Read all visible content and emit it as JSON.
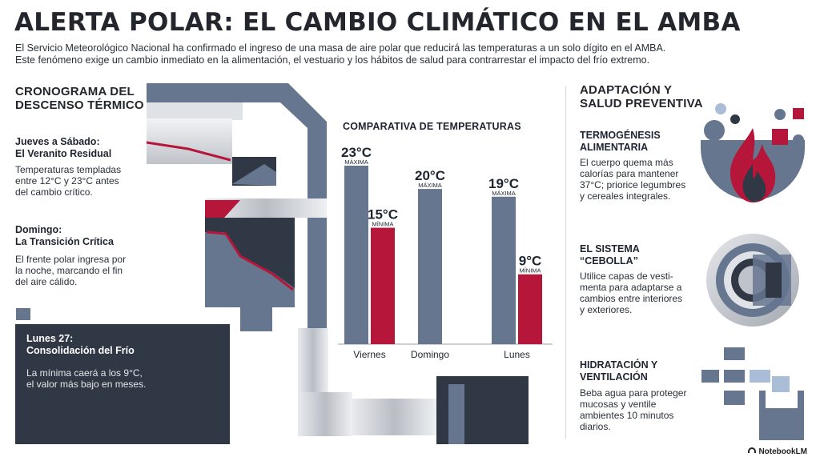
{
  "header": {
    "title": "ALERTA POLAR: EL CAMBIO CLIMÁTICO EN EL AMBA",
    "intro_line1": "El Servicio Meteorológico Nacional ha confirmado el ingreso de una masa de aire polar que reducirá las temperaturas a un solo dígito en el AMBA.",
    "intro_line2": "Este fenómeno exige un cambio inmediato en la alimentación, el vestuario y los hábitos de salud para contrarrestar el impacto del frío extremo."
  },
  "timeline": {
    "title_line1": "CRONOGRAMA DEL",
    "title_line2": "DESCENSO TÉRMICO",
    "items": [
      {
        "title_line1": "Jueves a Sábado:",
        "title_line2": "El Veranito Residual",
        "text_line1": "Temperaturas templadas",
        "text_line2": "entre 12°C y 23°C antes",
        "text_line3": "del cambio crítico."
      },
      {
        "title_line1": "Domingo:",
        "title_line2": "La Transición Crítica",
        "text_line1": "El frente polar ingresa por",
        "text_line2": "la noche, marcando el fin",
        "text_line3": "del aire cálido."
      },
      {
        "title_line1": "Lunes 27:",
        "title_line2": "Consolidación del Frío",
        "text_line1": "La mínima caerá a los 9°C,",
        "text_line2": "el valor más bajo en meses."
      }
    ]
  },
  "chart_data": {
    "type": "bar",
    "title": "COMPARATIVA DE TEMPERATURAS",
    "categories": [
      "Viernes",
      "Domingo",
      "Lunes"
    ],
    "series": [
      {
        "name": "MÁXIMA",
        "values": [
          23,
          20,
          19
        ],
        "labels": [
          "23°C",
          "20°C",
          "19°C"
        ],
        "color": "#66768f"
      },
      {
        "name": "MÍNIMA",
        "values": [
          15,
          null,
          9
        ],
        "labels": [
          "15°C",
          "",
          "9°C"
        ],
        "color": "#b5163a"
      }
    ],
    "ylim": [
      0,
      23
    ],
    "xlabel": "",
    "ylabel": ""
  },
  "adaptation": {
    "title_line1": "ADAPTACIÓN Y",
    "title_line2": "SALUD PREVENTIVA",
    "items": [
      {
        "title_line1": "TERMOGÉNESIS",
        "title_line2": "ALIMENTARIA",
        "text_line1": "El cuerpo quema más",
        "text_line2": "calorías para mantener",
        "text_line3": "37°C; priorice legumbres",
        "text_line4": "y cereales integrales."
      },
      {
        "title_line1": "EL SISTEMA",
        "title_line2": "“CEBOLLA”",
        "text_line1": "Utilice capas de vesti-",
        "text_line2": "menta para adaptarse a",
        "text_line3": "cambios entre interiores",
        "text_line4": "y exteriores."
      },
      {
        "title_line1": "HIDRATACIÓN Y",
        "title_line2": "VENTILACIÓN",
        "text_line1": "Beba agua para proteger",
        "text_line2": "mucosas y ventile",
        "text_line3": "ambientes 10 minutos",
        "text_line4": "diarios."
      }
    ]
  },
  "brand": {
    "label": "NotebookLM"
  },
  "colors": {
    "slate": "#66768f",
    "crimson": "#b5163a",
    "dark": "#2f3844",
    "light": "#c7cad0"
  }
}
